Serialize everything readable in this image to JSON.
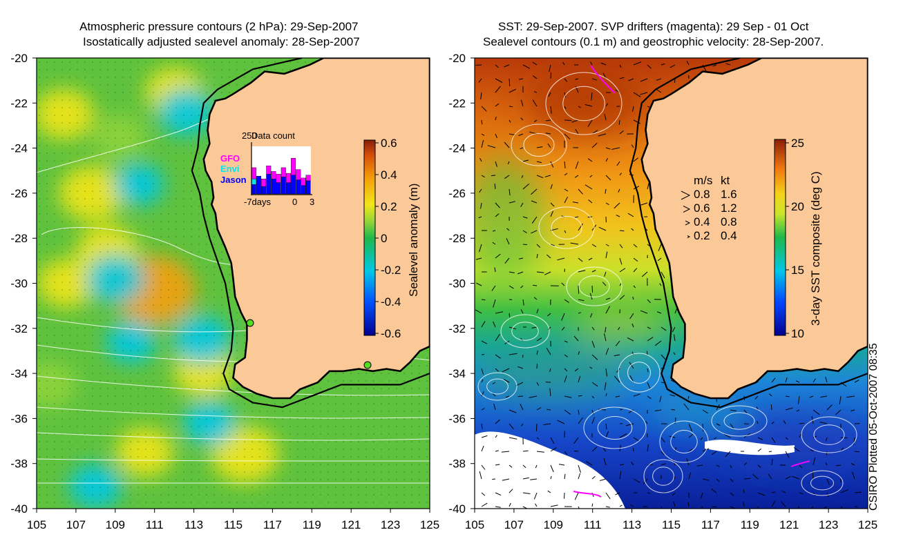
{
  "left_title_line1": "Atmospheric pressure contours (2 hPa): 29-Sep-2007",
  "left_title_line2": "Isostatically adjusted sealevel anomaly: 28-Sep-2007",
  "right_title_line1": "SST: 29-Sep-2007. SVP drifters (magenta): 29 Sep - 01 Oct",
  "right_title_line2": "Sealevel contours (0.1 m) and geostrophic velocity: 28-Sep-2007.",
  "credit": "CSIRO Plotted 05-Oct-2007 08:35",
  "colors": {
    "land": "#fbc897",
    "coast": "#000000",
    "contour": "#ffffff",
    "drifter": "#ff00ff",
    "station": "#55dd22"
  },
  "chart_data": [
    {
      "type": "heatmap",
      "panel": "left",
      "quantity": "Sealevel anomaly",
      "x_ticks": [
        "105",
        "107",
        "109",
        "111",
        "113",
        "115",
        "117",
        "119",
        "121",
        "123",
        "125"
      ],
      "y_ticks": [
        "-20",
        "-22",
        "-24",
        "-26",
        "-28",
        "-30",
        "-32",
        "-34",
        "-36",
        "-38",
        "-40"
      ],
      "xlim": [
        105,
        125
      ],
      "ylim": [
        -40,
        -20
      ],
      "colorbar": {
        "label": "Sealevel anomaly (m)",
        "ticks": [
          "0.6",
          "0.4",
          "0.2",
          "0",
          "-0.2",
          "-0.4",
          "-0.6"
        ],
        "range": [
          -0.6,
          0.6
        ]
      },
      "blobs": [
        {
          "lon": 111.0,
          "lat": -30.3,
          "val": 0.45
        },
        {
          "lon": 115.6,
          "lat": -37.6,
          "val": 0.3
        },
        {
          "lon": 107.8,
          "lat": -26.0,
          "val": 0.28
        },
        {
          "lon": 106.4,
          "lat": -22.5,
          "val": 0.22
        },
        {
          "lon": 108.6,
          "lat": -28.6,
          "val": 0.25
        },
        {
          "lon": 106.5,
          "lat": -30.0,
          "val": 0.2
        },
        {
          "lon": 113.5,
          "lat": -33.9,
          "val": 0.22
        },
        {
          "lon": 110.5,
          "lat": -37.5,
          "val": 0.2
        },
        {
          "lon": 112.0,
          "lat": -21.5,
          "val": 0.2
        },
        {
          "lon": 109.2,
          "lat": -23.5,
          "val": 0.15
        },
        {
          "lon": 105.6,
          "lat": -34.5,
          "val": 0.18
        },
        {
          "lon": 112.6,
          "lat": -22.4,
          "val": -0.18
        },
        {
          "lon": 109.0,
          "lat": -29.8,
          "val": -0.2
        },
        {
          "lon": 113.4,
          "lat": -32.5,
          "val": -0.2
        },
        {
          "lon": 109.8,
          "lat": -32.6,
          "val": -0.12
        },
        {
          "lon": 110.2,
          "lat": -25.6,
          "val": -0.12
        },
        {
          "lon": 108.0,
          "lat": -39.0,
          "val": -0.15
        },
        {
          "lon": 113.8,
          "lat": -36.2,
          "val": -0.15
        }
      ],
      "inset": {
        "title": "Data count",
        "ymax_label": "250",
        "x_labels": [
          "-7days",
          "0",
          "3"
        ],
        "legend": [
          {
            "name": "GFO",
            "color": "#ff00ff"
          },
          {
            "name": "Envi",
            "color": "#00e5ee"
          },
          {
            "name": "Jason",
            "color": "#0000ff"
          }
        ],
        "bars": [
          {
            "jason": 50,
            "envi": 30,
            "gfo": 60
          },
          {
            "jason": 95,
            "envi": 0,
            "gfo": 0
          },
          {
            "jason": 40,
            "envi": 0,
            "gfo": 40
          },
          {
            "jason": 105,
            "envi": 0,
            "gfo": 45
          },
          {
            "jason": 80,
            "envi": 0,
            "gfo": 40
          },
          {
            "jason": 60,
            "envi": 0,
            "gfo": 45
          },
          {
            "jason": 90,
            "envi": 0,
            "gfo": 50
          },
          {
            "jason": 60,
            "envi": 0,
            "gfo": 50
          },
          {
            "jason": 100,
            "envi": 0,
            "gfo": 90
          },
          {
            "jason": 75,
            "envi": 0,
            "gfo": 55
          },
          {
            "jason": 45,
            "envi": 0,
            "gfo": 40
          },
          {
            "jason": 70,
            "envi": 0,
            "gfo": 30
          }
        ]
      }
    },
    {
      "type": "heatmap",
      "panel": "right",
      "quantity": "3-day SST composite",
      "x_ticks": [
        "105",
        "107",
        "109",
        "111",
        "113",
        "115",
        "117",
        "119",
        "121",
        "123",
        "125"
      ],
      "y_ticks": [
        "-20",
        "-22",
        "-24",
        "-26",
        "-28",
        "-30",
        "-32",
        "-34",
        "-36",
        "-38",
        "-40"
      ],
      "xlim": [
        105,
        125
      ],
      "ylim": [
        -40,
        -20
      ],
      "colorbar": {
        "label": "3-day SST composite (deg C)",
        "ticks": [
          "25",
          "20",
          "15",
          "10"
        ],
        "range": [
          10,
          25
        ]
      },
      "velocity_legend": {
        "header_ms": "m/s",
        "header_kt": "kt",
        "rows": [
          {
            "ms": "0.8",
            "kt": "1.6"
          },
          {
            "ms": "0.6",
            "kt": "1.2"
          },
          {
            "ms": "0.4",
            "kt": "0.8"
          },
          {
            "ms": "0.2",
            "kt": "0.4"
          }
        ]
      }
    }
  ]
}
